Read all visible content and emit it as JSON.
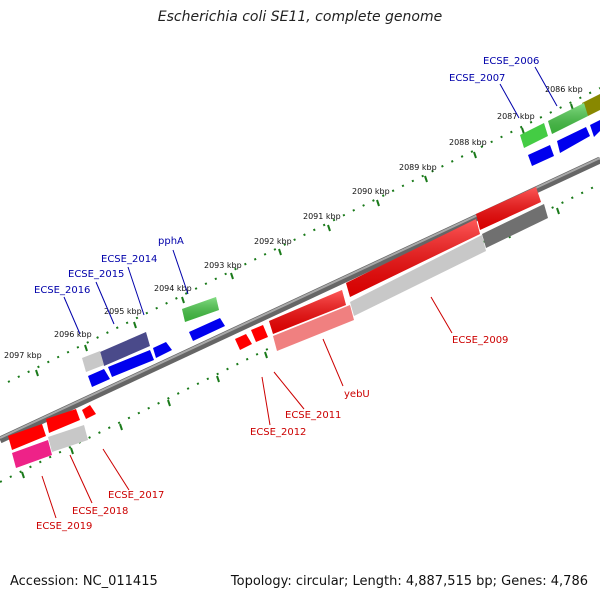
{
  "title": "Escherichia coli SE11, complete genome",
  "footer": {
    "accession": "Accession: NC_011415",
    "summary": "Topology: circular; Length: 4,887,515 bp; Genes: 4,786"
  },
  "colors": {
    "backbone": "#808080",
    "tick": "#1a7a1a",
    "forward_label": "#0000aa",
    "reverse_label": "#cc0000",
    "red": "#ff0000",
    "light_red": "#f08080",
    "green": "#44cc44",
    "blue": "#0000ee",
    "dark_blue": "#4a4a8a",
    "gray": "#c8c8c8",
    "dark_gray": "#707070",
    "pink": "#ee2288",
    "olive": "#888800"
  },
  "kbp_ticks": [
    "2086 kbp",
    "2087 kbp",
    "2088 kbp",
    "2089 kbp",
    "2090 kbp",
    "2091 kbp",
    "2092 kbp",
    "2093 kbp",
    "2094 kbp",
    "2095 kbp",
    "2096 kbp",
    "2097 kbp"
  ],
  "forward_labels": [
    "ECSE_2006",
    "ECSE_2007",
    "pphA",
    "ECSE_2014",
    "ECSE_2015",
    "ECSE_2016"
  ],
  "reverse_labels": [
    "ECSE_2009",
    "yebU",
    "ECSE_2011",
    "ECSE_2012",
    "ECSE_2017",
    "ECSE_2018",
    "ECSE_2019"
  ]
}
